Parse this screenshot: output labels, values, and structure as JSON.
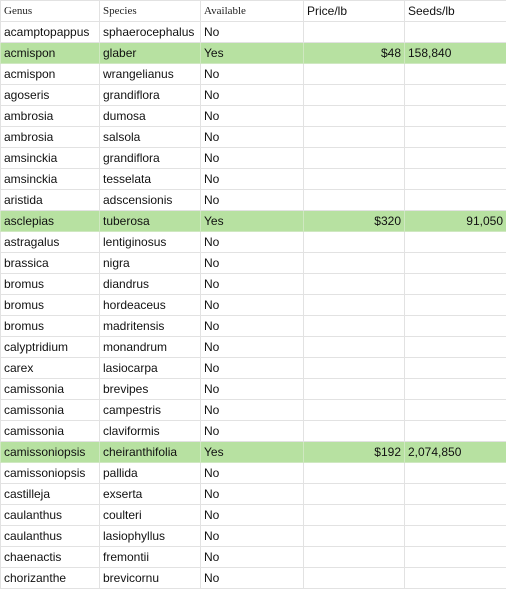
{
  "colors": {
    "highlight": "#b7e1a1",
    "grid": "#e2e2e2",
    "text": "#111111"
  },
  "headers": [
    "Genus",
    "Species",
    "Available",
    "Price/lb",
    "Seeds/lb"
  ],
  "rows": [
    {
      "genus": "acamptopappus",
      "species": "sphaerocephalus",
      "available": "No",
      "price": "",
      "seeds": "",
      "highlight": false,
      "seeds_align": "left"
    },
    {
      "genus": "acmispon",
      "species": "glaber",
      "available": "Yes",
      "price": "$48",
      "seeds": "158,840",
      "highlight": true,
      "seeds_align": "left"
    },
    {
      "genus": "acmispon",
      "species": "wrangelianus",
      "available": "No",
      "price": "",
      "seeds": "",
      "highlight": false,
      "seeds_align": "left"
    },
    {
      "genus": "agoseris",
      "species": "grandiflora",
      "available": "No",
      "price": "",
      "seeds": "",
      "highlight": false,
      "seeds_align": "left"
    },
    {
      "genus": "ambrosia",
      "species": "dumosa",
      "available": "No",
      "price": "",
      "seeds": "",
      "highlight": false,
      "seeds_align": "left"
    },
    {
      "genus": "ambrosia",
      "species": "salsola",
      "available": "No",
      "price": "",
      "seeds": "",
      "highlight": false,
      "seeds_align": "left"
    },
    {
      "genus": "amsinckia",
      "species": "grandiflora",
      "available": "No",
      "price": "",
      "seeds": "",
      "highlight": false,
      "seeds_align": "left"
    },
    {
      "genus": "amsinckia",
      "species": "tesselata",
      "available": "No",
      "price": "",
      "seeds": "",
      "highlight": false,
      "seeds_align": "left"
    },
    {
      "genus": "aristida",
      "species": "adscensionis",
      "available": "No",
      "price": "",
      "seeds": "",
      "highlight": false,
      "seeds_align": "left"
    },
    {
      "genus": "asclepias",
      "species": "tuberosa",
      "available": "Yes",
      "price": "$320",
      "seeds": "91,050",
      "highlight": true,
      "seeds_align": "right"
    },
    {
      "genus": "astragalus",
      "species": "lentiginosus",
      "available": "No",
      "price": "",
      "seeds": "",
      "highlight": false,
      "seeds_align": "left"
    },
    {
      "genus": "brassica",
      "species": "nigra",
      "available": "No",
      "price": "",
      "seeds": "",
      "highlight": false,
      "seeds_align": "left"
    },
    {
      "genus": "bromus",
      "species": "diandrus",
      "available": "No",
      "price": "",
      "seeds": "",
      "highlight": false,
      "seeds_align": "left"
    },
    {
      "genus": "bromus",
      "species": "hordeaceus",
      "available": "No",
      "price": "",
      "seeds": "",
      "highlight": false,
      "seeds_align": "left"
    },
    {
      "genus": "bromus",
      "species": "madritensis",
      "available": "No",
      "price": "",
      "seeds": "",
      "highlight": false,
      "seeds_align": "left"
    },
    {
      "genus": "calyptridium",
      "species": "monandrum",
      "available": "No",
      "price": "",
      "seeds": "",
      "highlight": false,
      "seeds_align": "left"
    },
    {
      "genus": "carex",
      "species": "lasiocarpa",
      "available": "No",
      "price": "",
      "seeds": "",
      "highlight": false,
      "seeds_align": "left"
    },
    {
      "genus": "camissonia",
      "species": "brevipes",
      "available": "No",
      "price": "",
      "seeds": "",
      "highlight": false,
      "seeds_align": "left"
    },
    {
      "genus": "camissonia",
      "species": "campestris",
      "available": "No",
      "price": "",
      "seeds": "",
      "highlight": false,
      "seeds_align": "left"
    },
    {
      "genus": "camissonia",
      "species": "claviformis",
      "available": "No",
      "price": "",
      "seeds": "",
      "highlight": false,
      "seeds_align": "left"
    },
    {
      "genus": "camissoniopsis",
      "species": "cheiranthifolia",
      "available": "Yes",
      "price": "$192",
      "seeds": "2,074,850",
      "highlight": true,
      "seeds_align": "left"
    },
    {
      "genus": "camissoniopsis",
      "species": "pallida",
      "available": "No",
      "price": "",
      "seeds": "",
      "highlight": false,
      "seeds_align": "left"
    },
    {
      "genus": "castilleja",
      "species": "exserta",
      "available": "No",
      "price": "",
      "seeds": "",
      "highlight": false,
      "seeds_align": "left"
    },
    {
      "genus": "caulanthus",
      "species": "coulteri",
      "available": "No",
      "price": "",
      "seeds": "",
      "highlight": false,
      "seeds_align": "left"
    },
    {
      "genus": "caulanthus",
      "species": "lasiophyllus",
      "available": "No",
      "price": "",
      "seeds": "",
      "highlight": false,
      "seeds_align": "left"
    },
    {
      "genus": "chaenactis",
      "species": "fremontii",
      "available": "No",
      "price": "",
      "seeds": "",
      "highlight": false,
      "seeds_align": "left"
    },
    {
      "genus": "chorizanthe",
      "species": "brevicornu",
      "available": "No",
      "price": "",
      "seeds": "",
      "highlight": false,
      "seeds_align": "left"
    }
  ]
}
